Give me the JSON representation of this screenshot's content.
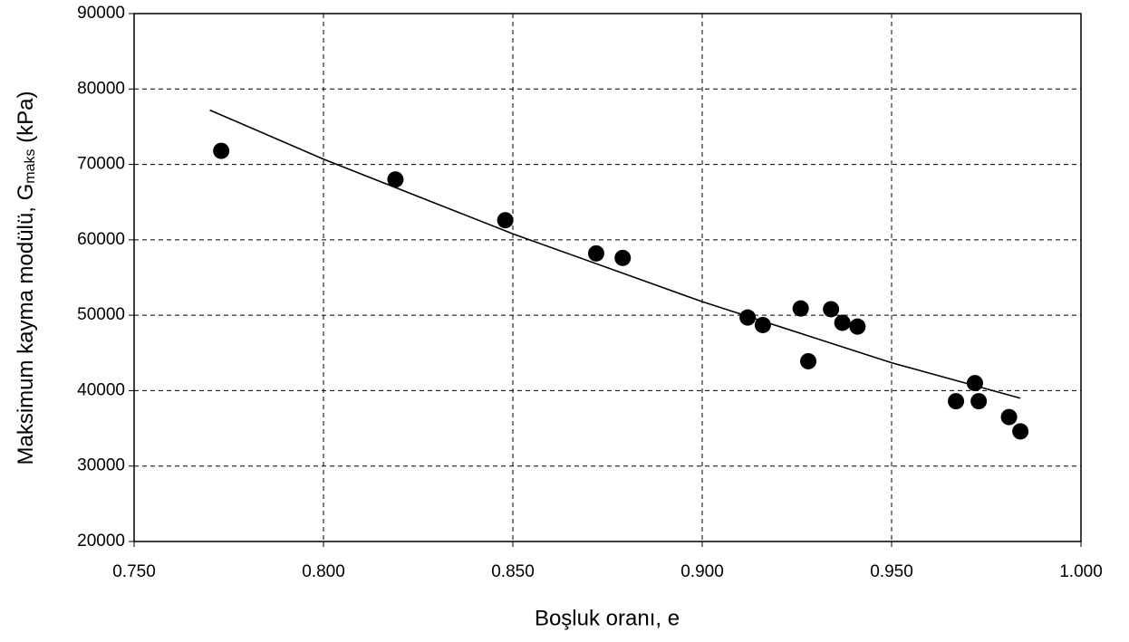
{
  "chart_data": {
    "type": "scatter",
    "xlabel": "Boşluk oranı, e",
    "ylabel": {
      "text": "Maksimum kayma modülü, G",
      "sub": "maks",
      "after": " (kPa)"
    },
    "xlim": [
      0.75,
      1.0
    ],
    "xticks": [
      {
        "value": 0.75,
        "label": "0.750"
      },
      {
        "value": 0.8,
        "label": "0.800"
      },
      {
        "value": 0.85,
        "label": "0.850"
      },
      {
        "value": 0.9,
        "label": "0.900"
      },
      {
        "value": 0.95,
        "label": "0.950"
      },
      {
        "value": 1.0,
        "label": "1.000"
      }
    ],
    "ylim": [
      20000,
      90000
    ],
    "yticks": [
      20000,
      30000,
      40000,
      50000,
      60000,
      70000,
      80000,
      90000
    ],
    "grid": true,
    "series": [
      {
        "mode": "markers",
        "color": "#000000",
        "x": [
          0.773,
          0.819,
          0.848,
          0.872,
          0.879,
          0.912,
          0.916,
          0.926,
          0.928,
          0.934,
          0.937,
          0.941,
          0.967,
          0.972,
          0.973,
          0.981,
          0.984
        ],
        "values": [
          71800,
          68000,
          62600,
          58200,
          57600,
          49700,
          48700,
          50900,
          43900,
          50800,
          49000,
          48500,
          38600,
          41000,
          38600,
          36500,
          34600
        ]
      },
      {
        "mode": "line",
        "color": "#000000",
        "x": [
          0.77,
          0.8,
          0.85,
          0.9,
          0.95,
          0.984
        ],
        "values": [
          77200,
          70700,
          60800,
          51800,
          43700,
          39000
        ]
      }
    ]
  }
}
